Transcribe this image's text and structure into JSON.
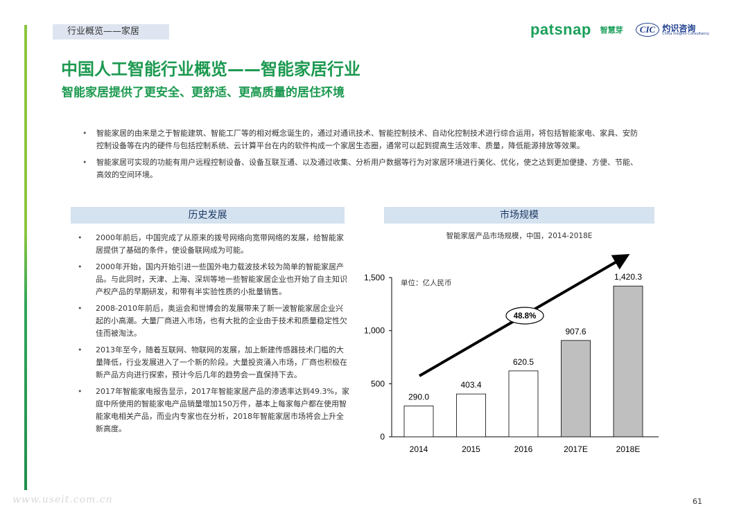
{
  "header": {
    "section_tag": "行业概览——家居",
    "logo_patsnap": "patsnap",
    "logo_patsnap_cn": "智慧芽",
    "logo_cic_mark": "CIC",
    "logo_cic_cn": "灼识咨询",
    "logo_cic_en": "China Insights Consultancy"
  },
  "title": {
    "main": "中国人工智能行业概览——智能家居行业",
    "sub": "智能家居提供了更安全、更舒适、更高质量的居住环境"
  },
  "intro": [
    "智能家居的由来是之于智能建筑、智能工厂等的相对概念诞生的，通过对通讯技术、智能控制技术、自动化控制技术进行综合运用，将包括智能家电、家具、安防控制设备等在内的硬件与包括控制系统、云计算平台在内的软件构成一个家居生态圈，通常可以起到提高生活效率、质量，降低能源排放等效果。",
    "智能家居可实现的功能有用户远程控制设备、设备互联互通、以及通过收集、分析用户数据等行为对家居环境进行美化、优化，使之达到更加便捷、方便、节能、高效的空间环境。"
  ],
  "history": {
    "header": "历史发展",
    "items": [
      "2000年前后，中国完成了从原来的拨号网络向宽带网络的发展，给智能家居提供了基础的条件，使设备联网成为可能。",
      "2000年开始，国内开始引进一些国外电力载波技术较为简单的智能家居产品。与此同时，天津、上海、深圳等地一些智能家居企业也开始了自主知识产权产品的早期研发，和带有半实验性质的小批量销售。",
      "2008-2010年前后，奥运会和世博会的发展带来了新一波智能家居企业兴起的小高潮。大量厂商进入市场，也有大批的企业由于技术和质量稳定性欠佳而被淘汰。",
      "2013年至今，随着互联网、物联网的发展，加上新建传感器技术门槛的大量降低，行业发展进入了一个新的阶段。大量投资涌入市场，厂商也积极在新产品方向进行探索，预计今后几年的趋势会一直保持下去。",
      "2017年智能家电报告显示，2017年智能家居产品的渗透率达到49.3%，家庭中所使用的智能家电产品销量增加150万件，基本上每家每户都在使用智能家电相关产品，而业内专家也在分析，2018年智能家居市场将会上升全新高度。"
    ]
  },
  "market": {
    "header": "市场规模",
    "chart_title": "智能家居产品市场规模，中国，2014-2018E"
  },
  "chart_data": {
    "type": "bar",
    "categories": [
      "2014",
      "2015",
      "2016",
      "2017E",
      "2018E"
    ],
    "values": [
      290.0,
      403.4,
      620.5,
      907.6,
      1420.3
    ],
    "value_labels": [
      "290.0",
      "403.4",
      "620.5",
      "907.6",
      "1,420.3"
    ],
    "forecast": [
      false,
      false,
      false,
      true,
      true
    ],
    "colors": {
      "actual": "#ffffff",
      "forecast": "#bfbfbf",
      "stroke": "#000000"
    },
    "unit_label": "单位：亿人民币",
    "growth_label": "48.8%",
    "ylim": [
      0,
      1500
    ],
    "yticks": [
      0,
      500,
      1000,
      1500
    ],
    "ytick_labels": [
      "0",
      "500",
      "1,000",
      "1,500"
    ],
    "grid": false
  },
  "footer": {
    "page_number": "61",
    "watermark": "www.useit.com.cn"
  }
}
